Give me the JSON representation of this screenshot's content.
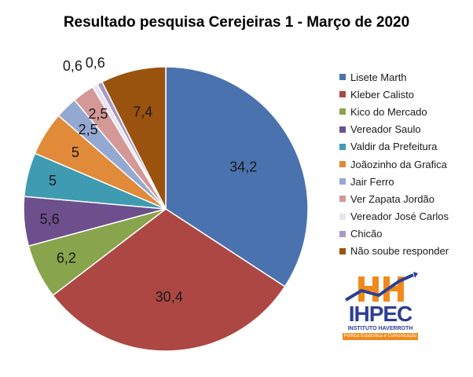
{
  "chart_data": {
    "type": "pie",
    "title": "Resultado pesquisa Cerejeiras 1 - Março de 2020",
    "categories": [
      "Lisete Marth",
      "Kleber Calisto",
      "Kico do Mercado",
      "Vereador Saulo",
      "Valdir da Prefeitura",
      "Joãozinho da Grafica",
      "Jair Ferro",
      "Ver Zapata Jordão",
      "Vereador José Carlos",
      "Chicão",
      "Não soube responder"
    ],
    "values": [
      34.2,
      30.4,
      6.2,
      5.6,
      5,
      5,
      2.5,
      2.5,
      0.6,
      0.6,
      7.4
    ],
    "value_labels": [
      "34,2",
      "30,4",
      "6,2",
      "5,6",
      "5",
      "5",
      "2,5",
      "2,5",
      "0,6",
      "0,6",
      "7,4"
    ],
    "colors": [
      "#4a72ae",
      "#ac4743",
      "#88a44c",
      "#6c4f8c",
      "#3f9bb1",
      "#e08a3a",
      "#93a9d1",
      "#d49896",
      "#e6e4f2",
      "#a899c5",
      "#9a520f"
    ],
    "legend_position": "right"
  },
  "logo": {
    "name": "IHPEC",
    "subtitle": "INSTITUTO HAVERROTH",
    "tagline": "Política Estatística e Comunicação"
  }
}
